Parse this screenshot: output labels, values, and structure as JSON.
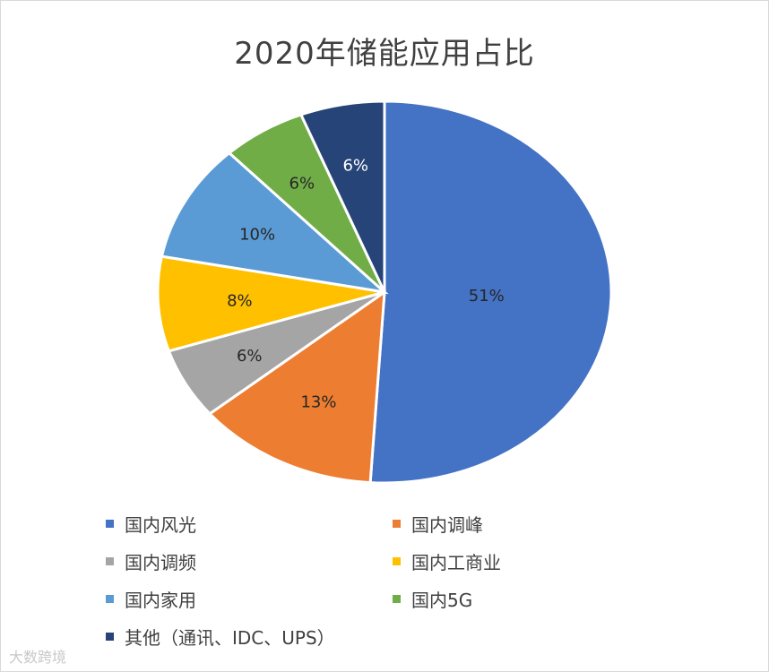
{
  "chart_data": {
    "type": "pie",
    "title": "2020年储能应用占比",
    "slices": [
      {
        "label": "国内风光",
        "value": 51,
        "display": "51%",
        "color": "#4472C4",
        "text_color": "#262626"
      },
      {
        "label": "国内调峰",
        "value": 13,
        "display": "13%",
        "color": "#ED7D31",
        "text_color": "#262626"
      },
      {
        "label": "国内调频",
        "value": 6,
        "display": "6%",
        "color": "#A5A5A5",
        "text_color": "#262626"
      },
      {
        "label": "国内工商业",
        "value": 8,
        "display": "8%",
        "color": "#FFC000",
        "text_color": "#262626"
      },
      {
        "label": "国内家用",
        "value": 10,
        "display": "10%",
        "color": "#5B9BD5",
        "text_color": "#262626"
      },
      {
        "label": "国内5G",
        "value": 6,
        "display": "6%",
        "color": "#70AD47",
        "text_color": "#262626"
      },
      {
        "label": "其他（通讯、IDC、UPS）",
        "value": 6,
        "display": "6%",
        "color": "#264478",
        "text_color": "#ffffff"
      }
    ],
    "start_angle_deg": 0,
    "direction": "clockwise",
    "legend_position": "bottom"
  },
  "watermark": "大数跨境"
}
